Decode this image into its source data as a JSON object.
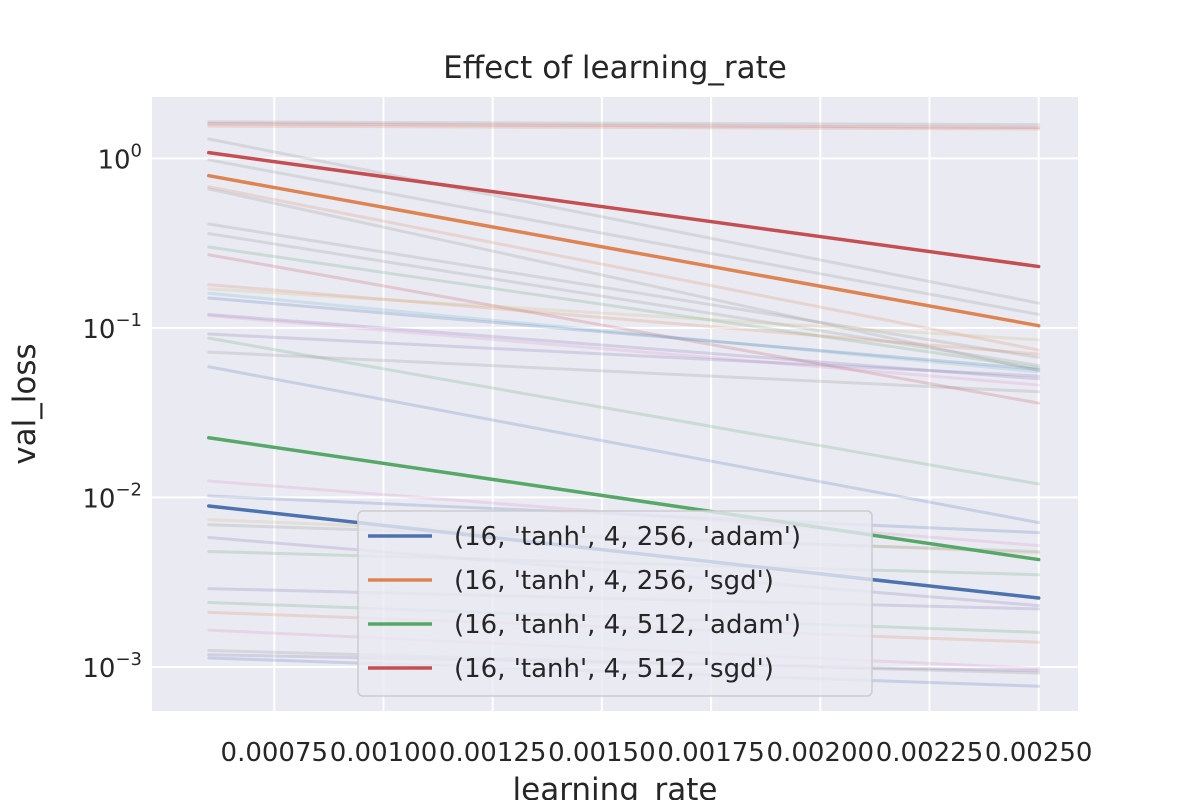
{
  "chart_data": {
    "type": "line",
    "title": "Effect of learning_rate",
    "xlabel": "learning_rate",
    "ylabel": "val_loss",
    "yscale": "log",
    "grid": true,
    "xlim": [
      0.00047,
      0.00259
    ],
    "ylim": [
      0.00055,
      2.3
    ],
    "x": [
      0.0006,
      0.0025
    ],
    "x_tick_labels": [
      "0.00075",
      "0.00100",
      "0.00125",
      "0.00150",
      "0.00175",
      "0.00200",
      "0.00225",
      "0.00250"
    ],
    "x_tick_values": [
      0.00075,
      0.001,
      0.00125,
      0.0015,
      0.00175,
      0.002,
      0.00225,
      0.0025
    ],
    "y_tick_labels": [
      {
        "base": "10",
        "exp": "0",
        "value": 1
      },
      {
        "base": "10",
        "exp": "−1",
        "value": 0.1
      },
      {
        "base": "10",
        "exp": "−2",
        "value": 0.01
      },
      {
        "base": "10",
        "exp": "−3",
        "value": 0.001
      }
    ],
    "legend_position": "lower-center",
    "series": [
      {
        "name": "(16, 'tanh', 4, 256, 'adam')",
        "color": "#4c72b0",
        "values": [
          0.0089,
          0.00255
        ],
        "highlight": true
      },
      {
        "name": "(16, 'tanh', 4, 256, 'sgd')",
        "color": "#dd8452",
        "values": [
          0.79,
          0.103
        ],
        "highlight": true
      },
      {
        "name": "(16, 'tanh', 4, 512, 'adam')",
        "color": "#55a868",
        "values": [
          0.0225,
          0.0043
        ],
        "highlight": true
      },
      {
        "name": "(16, 'tanh', 4, 512, 'sgd')",
        "color": "#c44e52",
        "values": [
          1.08,
          0.23
        ],
        "highlight": true
      },
      {
        "color": "#8c8c8c",
        "values": [
          1.64,
          1.58
        ],
        "highlight": false
      },
      {
        "color": "#c44e52",
        "values": [
          1.6,
          1.52
        ],
        "highlight": false
      },
      {
        "color": "#dd8452",
        "values": [
          1.55,
          1.49
        ],
        "highlight": false
      },
      {
        "color": "#8c8c8c",
        "values": [
          1.3,
          0.14
        ],
        "highlight": false
      },
      {
        "color": "#8c8c8c",
        "values": [
          0.98,
          0.12
        ],
        "highlight": false
      },
      {
        "color": "#dd8452",
        "values": [
          0.68,
          0.074
        ],
        "highlight": false
      },
      {
        "color": "#8c8c8c",
        "values": [
          0.66,
          0.056
        ],
        "highlight": false
      },
      {
        "color": "#8c8c8c",
        "values": [
          0.41,
          0.067
        ],
        "highlight": false
      },
      {
        "color": "#8c8c8c",
        "values": [
          0.36,
          0.06
        ],
        "highlight": false
      },
      {
        "color": "#55a868",
        "values": [
          0.3,
          0.058
        ],
        "highlight": false
      },
      {
        "color": "#c44e52",
        "values": [
          0.27,
          0.036
        ],
        "highlight": false
      },
      {
        "color": "#dd8452",
        "values": [
          0.18,
          0.07
        ],
        "highlight": false
      },
      {
        "color": "#ccb974",
        "values": [
          0.17,
          0.085
        ],
        "highlight": false
      },
      {
        "color": "#64b5cd",
        "values": [
          0.16,
          0.055
        ],
        "highlight": false
      },
      {
        "color": "#4c72b0",
        "values": [
          0.15,
          0.057
        ],
        "highlight": false
      },
      {
        "color": "#8172b3",
        "values": [
          0.12,
          0.05
        ],
        "highlight": false
      },
      {
        "color": "#da8bc3",
        "values": [
          0.118,
          0.046
        ],
        "highlight": false
      },
      {
        "color": "#8172b3",
        "values": [
          0.092,
          0.052
        ],
        "highlight": false
      },
      {
        "color": "#55a868",
        "values": [
          0.087,
          0.012
        ],
        "highlight": false
      },
      {
        "color": "#8c8c8c",
        "values": [
          0.072,
          0.042
        ],
        "highlight": false
      },
      {
        "color": "#4c72b0",
        "values": [
          0.059,
          0.0071
        ],
        "highlight": false
      },
      {
        "color": "#da8bc3",
        "values": [
          0.0125,
          0.0052
        ],
        "highlight": false
      },
      {
        "color": "#4c72b0",
        "values": [
          0.0102,
          0.0062
        ],
        "highlight": false
      },
      {
        "color": "#ccb974",
        "values": [
          0.0074,
          0.0047
        ],
        "highlight": false
      },
      {
        "color": "#8c8c8c",
        "values": [
          0.0069,
          0.0048
        ],
        "highlight": false
      },
      {
        "color": "#8172b3",
        "values": [
          0.0058,
          0.0023
        ],
        "highlight": false
      },
      {
        "color": "#55a868",
        "values": [
          0.0048,
          0.0035
        ],
        "highlight": false
      },
      {
        "color": "#8172b3",
        "values": [
          0.0029,
          0.0022
        ],
        "highlight": false
      },
      {
        "color": "#55a868",
        "values": [
          0.0024,
          0.0016
        ],
        "highlight": false
      },
      {
        "color": "#dd8452",
        "values": [
          0.0021,
          0.0014
        ],
        "highlight": false
      },
      {
        "color": "#da8bc3",
        "values": [
          0.00165,
          0.00098
        ],
        "highlight": false
      },
      {
        "color": "#8c8c8c",
        "values": [
          0.00125,
          0.00092
        ],
        "highlight": false
      },
      {
        "color": "#8172b3",
        "values": [
          0.00118,
          0.00095
        ],
        "highlight": false
      },
      {
        "color": "#4c72b0",
        "values": [
          0.00113,
          0.00077
        ],
        "highlight": false
      }
    ]
  }
}
